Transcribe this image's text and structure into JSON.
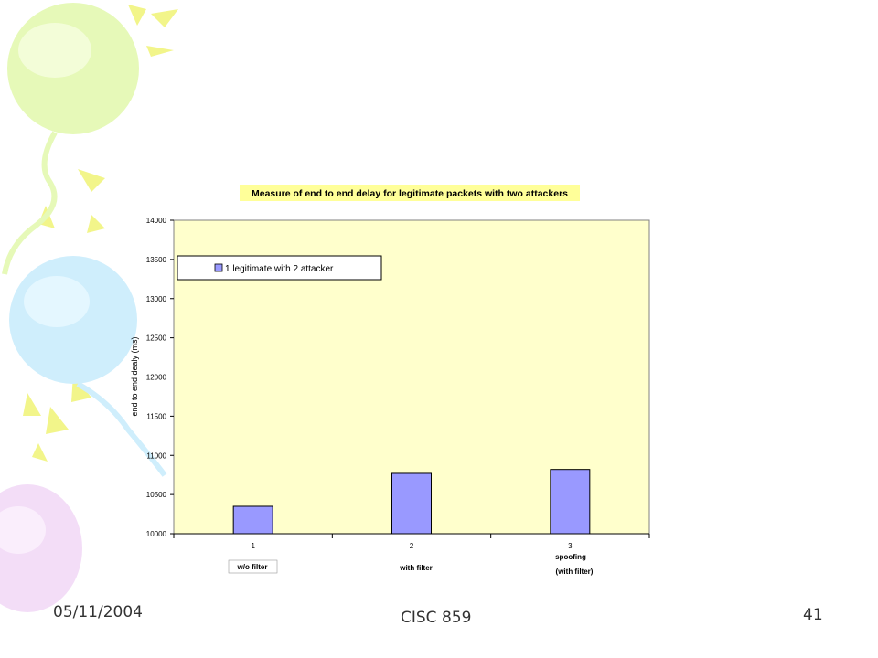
{
  "slide": {
    "date": "05/11/2004",
    "course": "CISC 859",
    "page_number": "41"
  },
  "colors": {
    "plot_background": "#ffffcc",
    "bar_fill": "#9999ff",
    "title_background": "#ffff99",
    "balloon_green": "#e6f9b8",
    "balloon_blue": "#cfeefc",
    "balloon_pink": "#f3ddf7",
    "rays": "#f2f58a"
  },
  "chart_data": {
    "type": "bar",
    "title": "Measure of end to end delay for legitimate packets with two attackers",
    "ylabel": "end to end dealy (ms)",
    "xlabel": "",
    "categories": [
      "1",
      "2",
      "3"
    ],
    "category_sublabels": [
      "w/o filter",
      "with filter",
      "spoofing\n(with filter)"
    ],
    "series": [
      {
        "name": "1 legitimate with 2 attacker",
        "values": [
          10350,
          10770,
          10820
        ]
      }
    ],
    "ylim": [
      10000,
      14000
    ],
    "yticks": [
      10000,
      10500,
      11000,
      11500,
      12000,
      12500,
      13000,
      13500,
      14000
    ],
    "grid": false,
    "legend": "top-left"
  }
}
